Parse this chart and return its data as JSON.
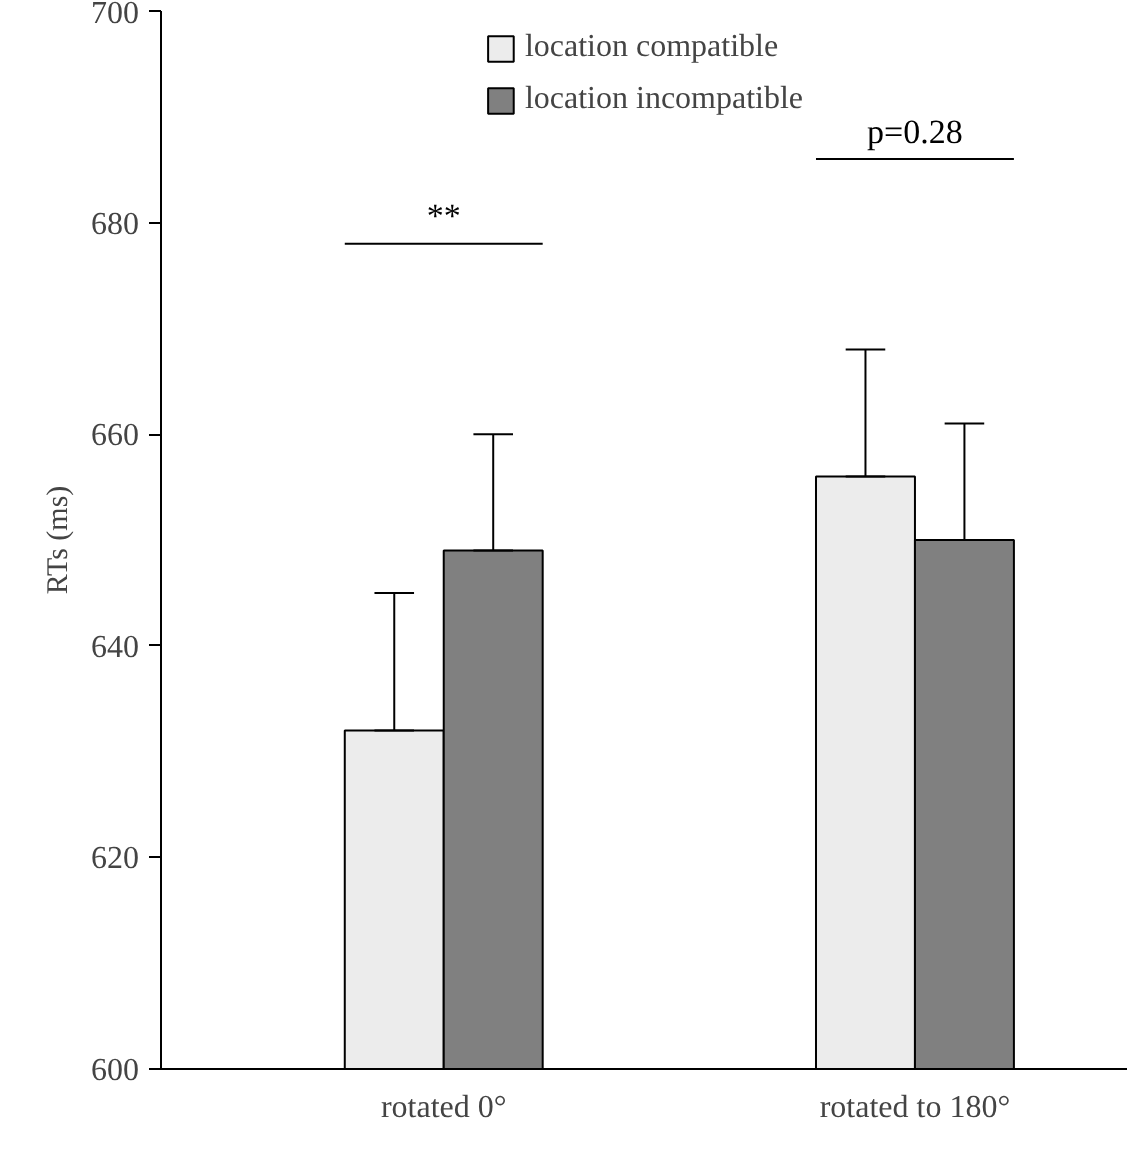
{
  "chart_data": {
    "type": "bar",
    "ylabel": "RTs (ms)",
    "categories": [
      "rotated 0°",
      "rotated to 180°"
    ],
    "series": [
      {
        "name": "location compatible",
        "color": "#ececec",
        "values": [
          632,
          656
        ],
        "errors": [
          [
            632,
            645
          ],
          [
            656,
            668
          ]
        ]
      },
      {
        "name": "location incompatible",
        "color": "#808080",
        "values": [
          649,
          650
        ],
        "errors": [
          [
            649,
            660
          ],
          [
            650,
            661
          ]
        ]
      }
    ],
    "ylim": [
      600,
      700
    ],
    "yticks": [
      600,
      620,
      640,
      660,
      680,
      700
    ],
    "grid": false,
    "legend": "top",
    "annotations": [
      "**",
      "p=0.28"
    ]
  }
}
